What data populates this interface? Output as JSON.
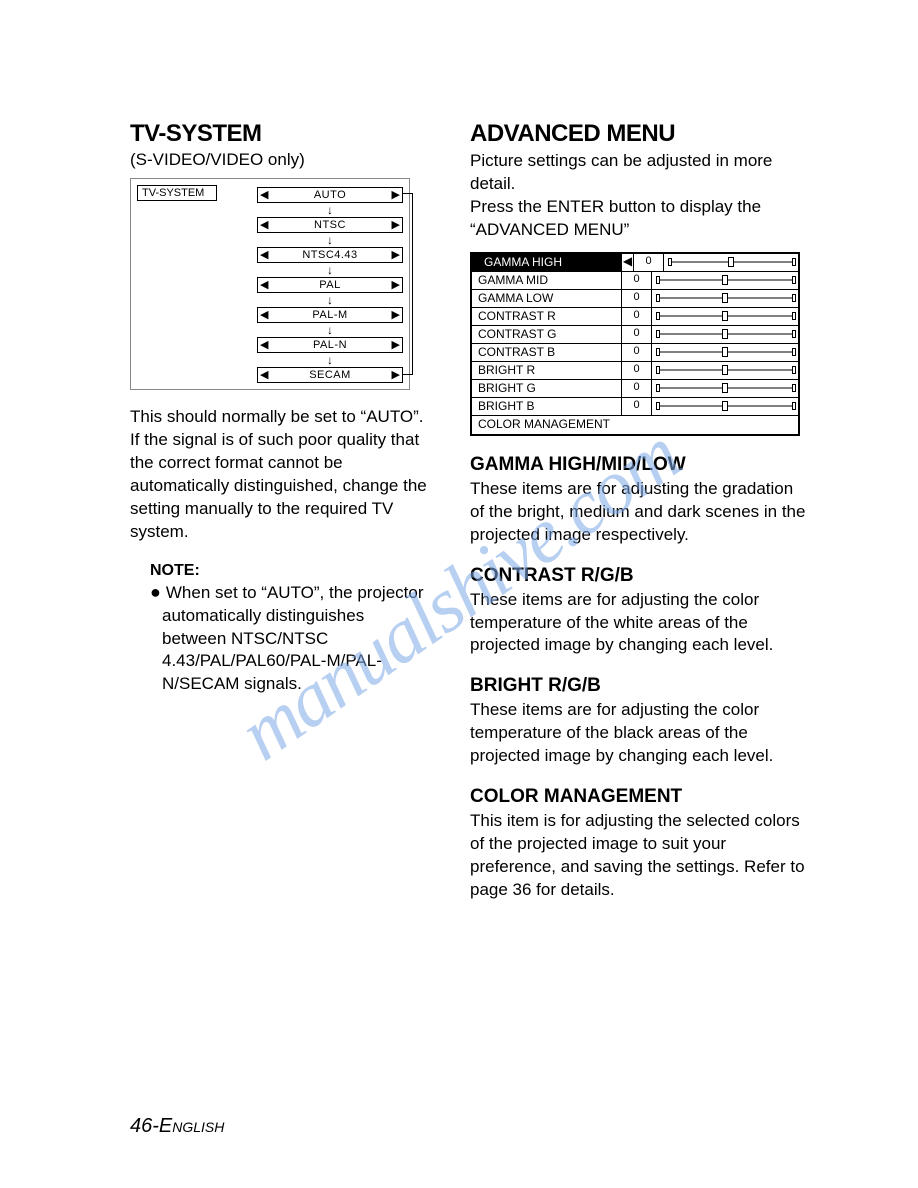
{
  "left": {
    "title": "TV-SYSTEM",
    "subtitle": "(S-VIDEO/VIDEO only)",
    "flow_label": "TV-SYSTEM",
    "flow_items": [
      "AUTO",
      "NTSC",
      "NTSC4.43",
      "PAL",
      "PAL-M",
      "PAL-N",
      "SECAM"
    ],
    "body": "This should normally be set to “AUTO”. If the signal is of such poor quality that the correct format cannot be automatically distinguished, change the setting manually to the required TV system.",
    "note_label": "NOTE:",
    "note_body": "When set to “AUTO”, the projector automatically distinguishes between NTSC/NTSC 4.43/PAL/PAL60/PAL-M/PAL-N/SECAM signals."
  },
  "right": {
    "title": "ADVANCED MENU",
    "intro": "Picture settings can be adjusted in more detail.\nPress the ENTER button to display the “ADVANCED MENU”",
    "menu_rows": [
      {
        "label": "GAMMA HIGH",
        "val": "0",
        "pos": 50,
        "highlight": true
      },
      {
        "label": "GAMMA MID",
        "val": "0",
        "pos": 50
      },
      {
        "label": "GAMMA LOW",
        "val": "0",
        "pos": 50
      },
      {
        "label": "CONTRAST R",
        "val": "0",
        "pos": 50
      },
      {
        "label": "CONTRAST G",
        "val": "0",
        "pos": 50
      },
      {
        "label": "CONTRAST B",
        "val": "0",
        "pos": 50
      },
      {
        "label": "BRIGHT R",
        "val": "0",
        "pos": 50
      },
      {
        "label": "BRIGHT G",
        "val": "0",
        "pos": 50
      },
      {
        "label": "BRIGHT B",
        "val": "0",
        "pos": 50
      },
      {
        "label": "COLOR MANAGEMENT",
        "val": null
      }
    ],
    "sections": [
      {
        "h": "GAMMA HIGH/MID/LOW",
        "p": "These items are for adjusting the gradation of the bright, medium and dark scenes in the projected image respectively."
      },
      {
        "h": "CONTRAST R/G/B",
        "p": "These items are for adjusting the color temperature of the white areas of the projected image by changing each level."
      },
      {
        "h": "BRIGHT R/G/B",
        "p": "These items are for adjusting the color temperature of the black areas of the projected image by changing each level."
      },
      {
        "h": "COLOR MANAGEMENT",
        "p": "This item is for adjusting the selected colors of the projected image to suit your preference, and saving the settings. Refer to page 36 for details."
      }
    ]
  },
  "footer": {
    "num": "46-",
    "eng": "English"
  },
  "watermark": "manualshive.com",
  "colors": {
    "watermark": "#7da8e6"
  }
}
